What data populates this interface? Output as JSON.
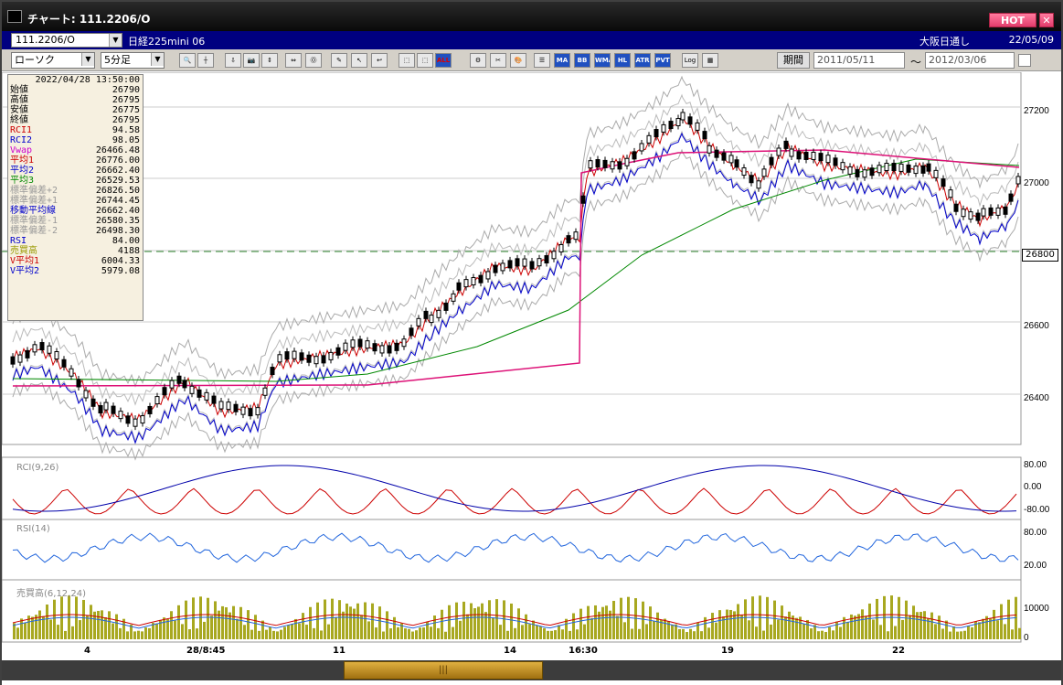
{
  "window": {
    "title": "チャート: 111.2206/O",
    "hot_label": "HOT",
    "close_glyph": "✕"
  },
  "header": {
    "symbol": "111.2206/O",
    "symbol_name": "日経225mini 06",
    "market": "大阪日通し",
    "date": "22/05/09"
  },
  "toolbar": {
    "chart_type": "ローソク",
    "interval": "5分足",
    "period_label": "期間",
    "date_from": "2011/05/11",
    "date_to": "2012/03/06",
    "tilde": "〜",
    "buttons": [
      "🔍",
      "┼",
      "⇩",
      "📷",
      "⇕",
      "⇔",
      "Ⓞ",
      "✎",
      "↖",
      "↩",
      "⬚",
      "⬚",
      "ALL",
      "⚙",
      "✂",
      "🎨",
      "☰",
      "MA",
      "BB",
      "WMA",
      "HL",
      "ATR",
      "PVT",
      "Log",
      "▦"
    ]
  },
  "info_panel": {
    "timestamp": "2022/04/28 13:50:00",
    "rows": [
      {
        "key": "始値",
        "value": "26790",
        "color": "#000000"
      },
      {
        "key": "高値",
        "value": "26795",
        "color": "#000000"
      },
      {
        "key": "安値",
        "value": "26775",
        "color": "#000000"
      },
      {
        "key": "終値",
        "value": "26795",
        "color": "#000000"
      },
      {
        "key": "RCI1",
        "value": "94.58",
        "color": "#cc0000"
      },
      {
        "key": "RCI2",
        "value": "98.05",
        "color": "#0000cc"
      },
      {
        "key": "Vwap",
        "value": "26466.48",
        "color": "#cc00cc"
      },
      {
        "key": "平均1",
        "value": "26776.00",
        "color": "#cc0000"
      },
      {
        "key": "平均2",
        "value": "26662.40",
        "color": "#0000cc"
      },
      {
        "key": "平均3",
        "value": "26529.53",
        "color": "#008800"
      },
      {
        "key": "標準偏差+2",
        "value": "26826.50",
        "color": "#999999"
      },
      {
        "key": "標準偏差+1",
        "value": "26744.45",
        "color": "#999999"
      },
      {
        "key": "移動平均線",
        "value": "26662.40",
        "color": "#0000cc"
      },
      {
        "key": "標準偏差-1",
        "value": "26580.35",
        "color": "#999999"
      },
      {
        "key": "標準偏差-2",
        "value": "26498.30",
        "color": "#999999"
      },
      {
        "key": "RSI",
        "value": "84.00",
        "color": "#0000cc"
      },
      {
        "key": "売買高",
        "value": "4188",
        "color": "#999900"
      },
      {
        "key": "V平均1",
        "value": "6004.33",
        "color": "#cc0000"
      },
      {
        "key": "V平均2",
        "value": "5979.08",
        "color": "#0000cc"
      }
    ]
  },
  "price_axis": {
    "ticks": [
      "27200",
      "27000",
      "26800",
      "26600",
      "26400"
    ],
    "marker": "26800"
  },
  "panes": {
    "rci_title": "RCI(9,26)",
    "rsi_title": "RSI(14)",
    "vol_title": "売買高(6,12,24)",
    "rci_ticks": [
      "80.00",
      "0.00",
      "-80.00"
    ],
    "rsi_ticks": [
      "80.00",
      "20.00"
    ],
    "vol_ticks": [
      "10000",
      "0"
    ]
  },
  "x_axis": {
    "labels": [
      "4",
      "28/8:45",
      "11",
      "14",
      "16:30",
      "19",
      "22"
    ]
  },
  "scrollbar": {
    "thumb_glyph": "|||"
  }
}
